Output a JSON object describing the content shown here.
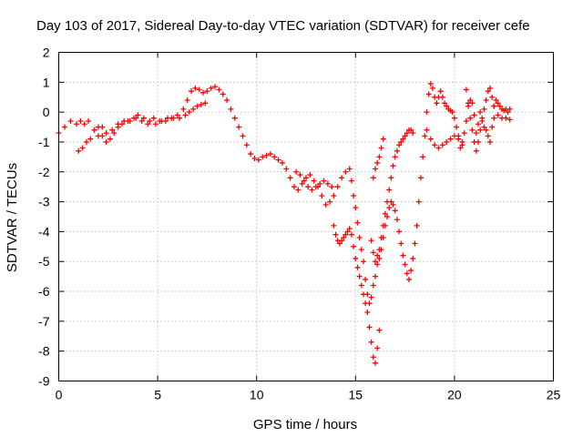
{
  "chart_data": {
    "type": "scatter",
    "title": "Day 103 of 2017, Sidereal Day-to-day VTEC variation (SDTVAR) for receiver cefe",
    "xlabel": "GPS time / hours",
    "ylabel": "SDTVAR / TECUs",
    "xlim": [
      0,
      25
    ],
    "ylim": [
      -9,
      2
    ],
    "xticks": [
      "0",
      "5",
      "10",
      "15",
      "20",
      "25"
    ],
    "yticks": [
      "2",
      "1",
      "0",
      "-1",
      "-2",
      "-3",
      "-4",
      "-5",
      "-6",
      "-7",
      "-8",
      "-9"
    ],
    "grid": true,
    "marker": "+",
    "color": "#ff0000",
    "series": [
      {
        "x": [
          0.0,
          0.3,
          0.6,
          0.9,
          1.1,
          1.3,
          1.5,
          1.8,
          2.0,
          2.2,
          2.4,
          2.7,
          3.0,
          3.3,
          3.6,
          3.9,
          4.2,
          4.5,
          4.8,
          5.1,
          5.4,
          5.7,
          6.0,
          6.3,
          6.5,
          6.7,
          6.9,
          7.1,
          7.3,
          7.5,
          7.7,
          7.9,
          8.1,
          8.3,
          8.5,
          8.7,
          8.9,
          9.1,
          9.3,
          9.5,
          9.7,
          9.9,
          10.1,
          10.3,
          10.5,
          10.7,
          10.9,
          11.1,
          11.3,
          11.5,
          11.7,
          11.9,
          12.1,
          12.3,
          12.5,
          12.7,
          12.9,
          13.1,
          13.3,
          13.5,
          13.7,
          13.9,
          14.1,
          14.3,
          14.5,
          14.7,
          14.8,
          14.9,
          15.0,
          15.1,
          15.2,
          15.3,
          15.4,
          15.5,
          15.6,
          15.7,
          15.8,
          15.9,
          16.0,
          16.1,
          16.2,
          16.3,
          16.4,
          16.5,
          16.6,
          16.7,
          16.8,
          16.9,
          17.0,
          17.1,
          17.2,
          17.3,
          17.4,
          17.5,
          17.6,
          17.7,
          17.8,
          17.9,
          18.0,
          18.1,
          18.2,
          18.3,
          18.4,
          18.5,
          18.6,
          18.7,
          18.8,
          18.9,
          19.0,
          19.1,
          19.2,
          19.3,
          19.4,
          19.5,
          19.6,
          19.7,
          19.8,
          19.9,
          20.0,
          20.1,
          20.2,
          20.3,
          20.4,
          20.5,
          20.6,
          20.7,
          20.8,
          20.9,
          21.0,
          21.1,
          21.2,
          21.3,
          21.4,
          21.5,
          21.6,
          21.7,
          21.8,
          21.9,
          22.0,
          22.1,
          22.2,
          22.3,
          22.4,
          22.5,
          22.6,
          22.7,
          22.8
        ],
        "y": [
          -0.7,
          -0.5,
          -0.3,
          -0.4,
          -0.3,
          -0.4,
          -0.3,
          -0.6,
          -0.8,
          -0.5,
          -0.7,
          -0.6,
          -0.4,
          -0.3,
          -0.3,
          -0.2,
          -0.3,
          -0.4,
          -0.2,
          -0.3,
          -0.3,
          -0.2,
          -0.1,
          0.1,
          0.4,
          0.7,
          0.8,
          0.75,
          0.65,
          0.7,
          0.8,
          0.85,
          0.75,
          0.6,
          0.4,
          0.1,
          -0.2,
          -0.5,
          -0.8,
          -1.1,
          -1.4,
          -1.55,
          -1.6,
          -1.5,
          -1.45,
          -1.4,
          -1.5,
          -1.6,
          -1.7,
          -1.9,
          -2.2,
          -2.5,
          -2.6,
          -2.4,
          -2.2,
          -2.1,
          -2.3,
          -2.5,
          -2.8,
          -3.1,
          -3.0,
          -2.8,
          -2.5,
          -2.2,
          -2.0,
          -1.9,
          -2.3,
          -2.8,
          -3.2,
          -3.7,
          -4.2,
          -4.6,
          -5.0,
          -5.6,
          -6.1,
          -6.4,
          -6.2,
          -5.8,
          -5.5,
          -5.1,
          -4.9,
          -4.6,
          -4.2,
          -3.8,
          -3.5,
          -3.2,
          -3.0,
          -3.1,
          -3.3,
          -3.6,
          -4.0,
          -4.4,
          -4.8,
          -5.1,
          -5.4,
          -5.6,
          -5.3,
          -4.9,
          -4.4,
          -3.8,
          -3.0,
          -2.2,
          -1.5,
          -0.8,
          0.0,
          0.6,
          0.95,
          0.8,
          0.5,
          0.3,
          0.5,
          0.7,
          0.5,
          0.3,
          0.2,
          0.1,
          0.05,
          0.0,
          -0.2,
          -0.5,
          -0.8,
          -1.2,
          -1.1,
          -0.7,
          -0.3,
          0.2,
          0.4,
          0.3,
          -0.1,
          -0.7,
          -0.4,
          0.0,
          -0.2,
          -0.5,
          -0.6,
          -0.8,
          -1.0,
          -0.5,
          0.2,
          0.4,
          0.3,
          0.2,
          0.1,
          0.05,
          0.1,
          0.0,
          0.1
        ]
      },
      {
        "x": [
          1.0,
          1.2,
          1.4,
          1.6,
          1.8,
          2.0,
          2.2,
          2.4,
          2.6,
          2.8,
          3.0,
          3.2,
          3.5,
          3.8,
          4.0,
          4.3,
          4.6,
          4.9,
          5.2,
          5.5,
          5.8,
          6.1,
          6.4,
          6.6,
          6.8,
          7.0,
          7.2,
          7.4
        ],
        "y": [
          -1.3,
          -1.2,
          -1.0,
          -0.9,
          -0.6,
          -0.5,
          -0.8,
          -1.0,
          -0.9,
          -0.7,
          -0.5,
          -0.4,
          -0.3,
          -0.2,
          -0.1,
          -0.2,
          -0.3,
          -0.4,
          -0.3,
          -0.2,
          -0.2,
          -0.2,
          -0.1,
          0.0,
          0.1,
          0.2,
          0.25,
          0.3
        ]
      },
      {
        "x": [
          12.0,
          12.2,
          12.4,
          12.6,
          12.8,
          13.0,
          13.2,
          13.4,
          13.6,
          13.8
        ],
        "y": [
          -2.0,
          -2.1,
          -2.3,
          -2.5,
          -2.6,
          -2.5,
          -2.4,
          -2.3,
          -2.4,
          -2.5
        ]
      },
      {
        "x": [
          13.9,
          14.0,
          14.1,
          14.2,
          14.3,
          14.4,
          14.5,
          14.6,
          14.7,
          14.8,
          14.9,
          15.0,
          15.1,
          15.2,
          15.3,
          15.4,
          15.5,
          15.6,
          15.7,
          15.8,
          15.9,
          16.0,
          16.1,
          16.2
        ],
        "y": [
          -3.8,
          -4.1,
          -4.3,
          -4.4,
          -4.3,
          -4.2,
          -4.1,
          -4.0,
          -3.9,
          -4.1,
          -4.5,
          -4.9,
          -5.2,
          -5.5,
          -5.8,
          -6.1,
          -6.4,
          -6.7,
          -7.2,
          -7.7,
          -8.2,
          -8.4,
          -7.9,
          -7.3
        ]
      },
      {
        "x": [
          15.8,
          15.9,
          16.0,
          16.1,
          16.2,
          16.3,
          16.4,
          16.5,
          16.6,
          16.7,
          16.8,
          16.9,
          17.0,
          17.1,
          17.2,
          17.3,
          17.4,
          17.5,
          17.6,
          17.7,
          17.8,
          17.9
        ],
        "y": [
          -4.3,
          -4.7,
          -5.0,
          -4.8,
          -4.6,
          -4.2,
          -3.8,
          -3.4,
          -3.0,
          -2.6,
          -2.2,
          -1.8,
          -1.5,
          -1.3,
          -1.1,
          -1.0,
          -0.9,
          -0.8,
          -0.7,
          -0.6,
          -0.6,
          -0.7
        ]
      },
      {
        "x": [
          15.9,
          16.0,
          16.1,
          16.2,
          16.3,
          16.4
        ],
        "y": [
          -2.2,
          -1.9,
          -1.7,
          -1.5,
          -1.2,
          -0.9
        ]
      },
      {
        "x": [
          18.6,
          18.8,
          19.0,
          19.2,
          19.4,
          19.6,
          19.8,
          20.0,
          20.2,
          20.4
        ],
        "y": [
          -0.6,
          -0.9,
          -1.1,
          -1.2,
          -1.1,
          -1.0,
          -0.9,
          -0.8,
          -0.9,
          -1.0
        ]
      },
      {
        "x": [
          20.6,
          20.7,
          20.8,
          20.9,
          21.0,
          21.1,
          21.2,
          21.3,
          21.4,
          21.5,
          21.6,
          21.7,
          21.8,
          21.9,
          22.0
        ],
        "y": [
          0.75,
          0.3,
          -0.2,
          -0.6,
          -1.0,
          -1.3,
          -1.0,
          -0.6,
          -0.3,
          0.1,
          0.4,
          0.7,
          0.8,
          0.5,
          0.2
        ]
      },
      {
        "x": [
          22.0,
          22.2,
          22.4,
          22.6,
          22.8
        ],
        "y": [
          -0.2,
          -0.1,
          -0.2,
          -0.2,
          -0.25
        ]
      }
    ]
  }
}
